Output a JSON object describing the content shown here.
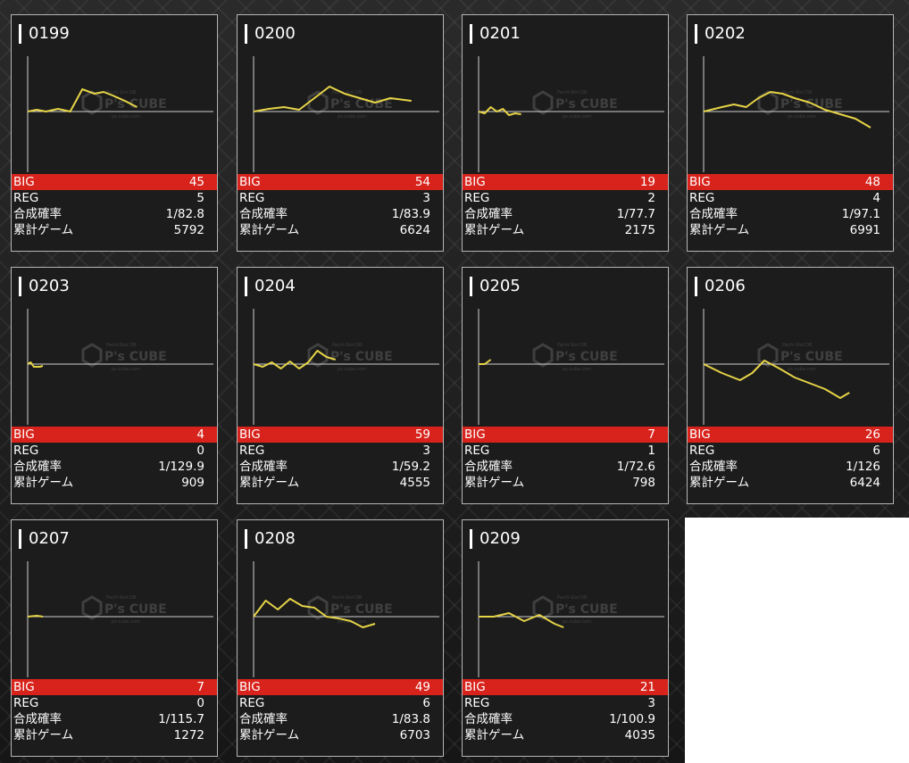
{
  "labels": {
    "big": "BIG",
    "reg": "REG",
    "rate": "合成確率",
    "games": "累計ゲーム"
  },
  "watermark": {
    "text": "P's CUBE",
    "subtitle": "Pachi-Slot DB",
    "caption": "ps-cube.com"
  },
  "colors": {
    "big_bar": "#d7231b",
    "graph_line": "#e6d447",
    "card_bg": "#1c1c1c"
  },
  "machines": [
    {
      "id": "0199",
      "big": "45",
      "reg": "5",
      "rate": "1/82.8",
      "games": "5792",
      "graph": [
        [
          0,
          0
        ],
        [
          3,
          -2
        ],
        [
          6,
          0
        ],
        [
          10,
          -3
        ],
        [
          14,
          0
        ],
        [
          18,
          -25
        ],
        [
          22,
          -20
        ],
        [
          25,
          -22
        ],
        [
          28,
          -18
        ],
        [
          32,
          -12
        ],
        [
          36,
          -5
        ]
      ]
    },
    {
      "id": "0200",
      "big": "54",
      "reg": "3",
      "rate": "1/83.9",
      "games": "6624",
      "graph": [
        [
          0,
          0
        ],
        [
          5,
          -3
        ],
        [
          10,
          -5
        ],
        [
          15,
          -2
        ],
        [
          20,
          -15
        ],
        [
          25,
          -28
        ],
        [
          30,
          -20
        ],
        [
          35,
          -15
        ],
        [
          40,
          -10
        ],
        [
          45,
          -15
        ],
        [
          52,
          -12
        ]
      ]
    },
    {
      "id": "0201",
      "big": "19",
      "reg": "2",
      "rate": "1/77.7",
      "games": "2175",
      "graph": [
        [
          0,
          0
        ],
        [
          2,
          2
        ],
        [
          4,
          -5
        ],
        [
          6,
          0
        ],
        [
          8,
          -3
        ],
        [
          10,
          4
        ],
        [
          12,
          2
        ],
        [
          14,
          3
        ]
      ]
    },
    {
      "id": "0202",
      "big": "48",
      "reg": "4",
      "rate": "1/97.1",
      "games": "6991",
      "graph": [
        [
          0,
          0
        ],
        [
          6,
          -5
        ],
        [
          10,
          -8
        ],
        [
          14,
          -5
        ],
        [
          18,
          -15
        ],
        [
          22,
          -22
        ],
        [
          26,
          -20
        ],
        [
          30,
          -15
        ],
        [
          35,
          -10
        ],
        [
          40,
          -2
        ],
        [
          45,
          3
        ],
        [
          50,
          8
        ],
        [
          55,
          18
        ]
      ]
    },
    {
      "id": "0203",
      "big": "4",
      "reg": "0",
      "rate": "1/129.9",
      "games": "909",
      "graph": [
        [
          0,
          0
        ],
        [
          1,
          -2
        ],
        [
          2,
          3
        ],
        [
          4,
          3
        ],
        [
          5,
          2
        ]
      ]
    },
    {
      "id": "0204",
      "big": "59",
      "reg": "3",
      "rate": "1/59.2",
      "games": "4555",
      "graph": [
        [
          0,
          0
        ],
        [
          3,
          3
        ],
        [
          6,
          -2
        ],
        [
          9,
          5
        ],
        [
          12,
          -3
        ],
        [
          15,
          5
        ],
        [
          18,
          -2
        ],
        [
          21,
          -15
        ],
        [
          24,
          -8
        ],
        [
          27,
          -5
        ]
      ]
    },
    {
      "id": "0205",
      "big": "7",
      "reg": "1",
      "rate": "1/72.6",
      "games": "798",
      "graph": [
        [
          0,
          0
        ],
        [
          2,
          0
        ],
        [
          4,
          -5
        ]
      ]
    },
    {
      "id": "0206",
      "big": "26",
      "reg": "6",
      "rate": "1/126",
      "games": "6424",
      "graph": [
        [
          0,
          0
        ],
        [
          6,
          10
        ],
        [
          12,
          18
        ],
        [
          16,
          10
        ],
        [
          20,
          -4
        ],
        [
          25,
          5
        ],
        [
          30,
          15
        ],
        [
          40,
          28
        ],
        [
          45,
          38
        ],
        [
          48,
          32
        ]
      ]
    },
    {
      "id": "0207",
      "big": "7",
      "reg": "0",
      "rate": "1/115.7",
      "games": "1272",
      "graph": [
        [
          0,
          0
        ],
        [
          3,
          -1
        ],
        [
          5,
          0
        ]
      ]
    },
    {
      "id": "0208",
      "big": "49",
      "reg": "6",
      "rate": "1/83.8",
      "games": "6703",
      "graph": [
        [
          0,
          0
        ],
        [
          4,
          -18
        ],
        [
          8,
          -8
        ],
        [
          12,
          -20
        ],
        [
          16,
          -12
        ],
        [
          20,
          -10
        ],
        [
          24,
          0
        ],
        [
          28,
          2
        ],
        [
          32,
          5
        ],
        [
          36,
          12
        ],
        [
          40,
          8
        ]
      ]
    },
    {
      "id": "0209",
      "big": "21",
      "reg": "3",
      "rate": "1/100.9",
      "games": "4035",
      "graph": [
        [
          0,
          0
        ],
        [
          5,
          0
        ],
        [
          10,
          -4
        ],
        [
          15,
          5
        ],
        [
          20,
          -2
        ],
        [
          25,
          8
        ],
        [
          28,
          12
        ]
      ]
    }
  ]
}
